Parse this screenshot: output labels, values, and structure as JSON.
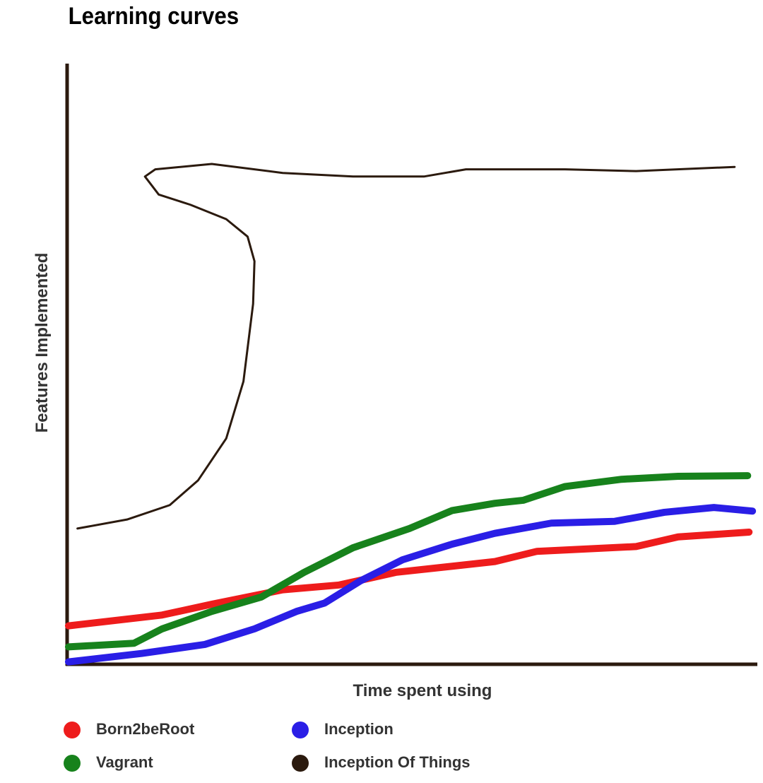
{
  "chart_data": {
    "type": "line",
    "title": "Learning curves",
    "x_label": "Time spent using",
    "y_label": "Features Implemented",
    "xlim": [
      0,
      100
    ],
    "ylim": [
      0,
      100
    ],
    "series": [
      {
        "name": "Born2beRoot",
        "color": "#ee1c1c",
        "x": [
          0.2,
          13.8,
          21.0,
          31.3,
          39.5,
          47.7,
          62.1,
          68.2,
          82.6,
          88.7,
          99.0
        ],
        "values": [
          6.4,
          8.2,
          10.0,
          12.4,
          13.2,
          15.3,
          17.1,
          18.8,
          19.6,
          21.2,
          22.0
        ]
      },
      {
        "name": "Vagrant",
        "color": "#17821c",
        "x": [
          0.2,
          9.7,
          13.8,
          21.0,
          28.2,
          34.4,
          41.5,
          49.7,
          55.9,
          62.1,
          66.2,
          72.3,
          80.5,
          88.7,
          98.8
        ],
        "values": [
          2.9,
          3.5,
          5.9,
          8.8,
          11.2,
          15.3,
          19.4,
          22.6,
          25.6,
          26.8,
          27.3,
          29.6,
          30.8,
          31.3,
          31.4
        ]
      },
      {
        "name": "Inception",
        "color": "#2a1ee6",
        "x": [
          0.2,
          10.8,
          20.0,
          27.2,
          33.3,
          37.4,
          42.6,
          48.7,
          55.9,
          62.1,
          70.3,
          79.5,
          86.7,
          93.9,
          99.5
        ],
        "values": [
          0.4,
          1.8,
          3.3,
          5.9,
          8.8,
          10.2,
          13.9,
          17.4,
          20.0,
          21.8,
          23.5,
          23.8,
          25.3,
          26.1,
          25.5
        ]
      },
      {
        "name": "Inception Of Things",
        "color": "#2b1a0e",
        "x": [
          1.5,
          8.7,
          14.9,
          19.0,
          23.1,
          25.6,
          27.0,
          27.2,
          26.2,
          23.1,
          17.9,
          13.3,
          11.3,
          12.8,
          21.0,
          31.3,
          41.5,
          51.8,
          57.9,
          72.3,
          82.6,
          96.9
        ],
        "values": [
          22.6,
          24.1,
          26.5,
          30.6,
          37.6,
          47.1,
          60.0,
          67.1,
          71.2,
          74.1,
          76.5,
          78.2,
          81.2,
          82.4,
          83.3,
          81.8,
          81.2,
          81.2,
          82.4,
          82.4,
          82.1,
          82.8
        ]
      }
    ]
  }
}
